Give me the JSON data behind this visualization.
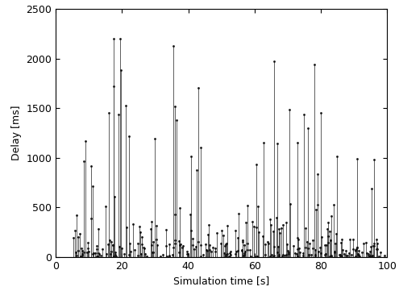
{
  "title": "",
  "xlabel": "Simulation time [s]",
  "ylabel": "Delay [ms]",
  "xlim": [
    0,
    100
  ],
  "ylim": [
    0,
    2500
  ],
  "xticks": [
    0,
    20,
    40,
    60,
    80,
    100
  ],
  "yticks": [
    0,
    500,
    1000,
    1500,
    2000,
    2500
  ],
  "marker_color": "#111111",
  "stem_color": "#444444",
  "baseline_color": "#000000",
  "figsize": [
    4.95,
    3.71
  ],
  "dpi": 100,
  "font_size_label": 9,
  "font_size_tick": 9
}
